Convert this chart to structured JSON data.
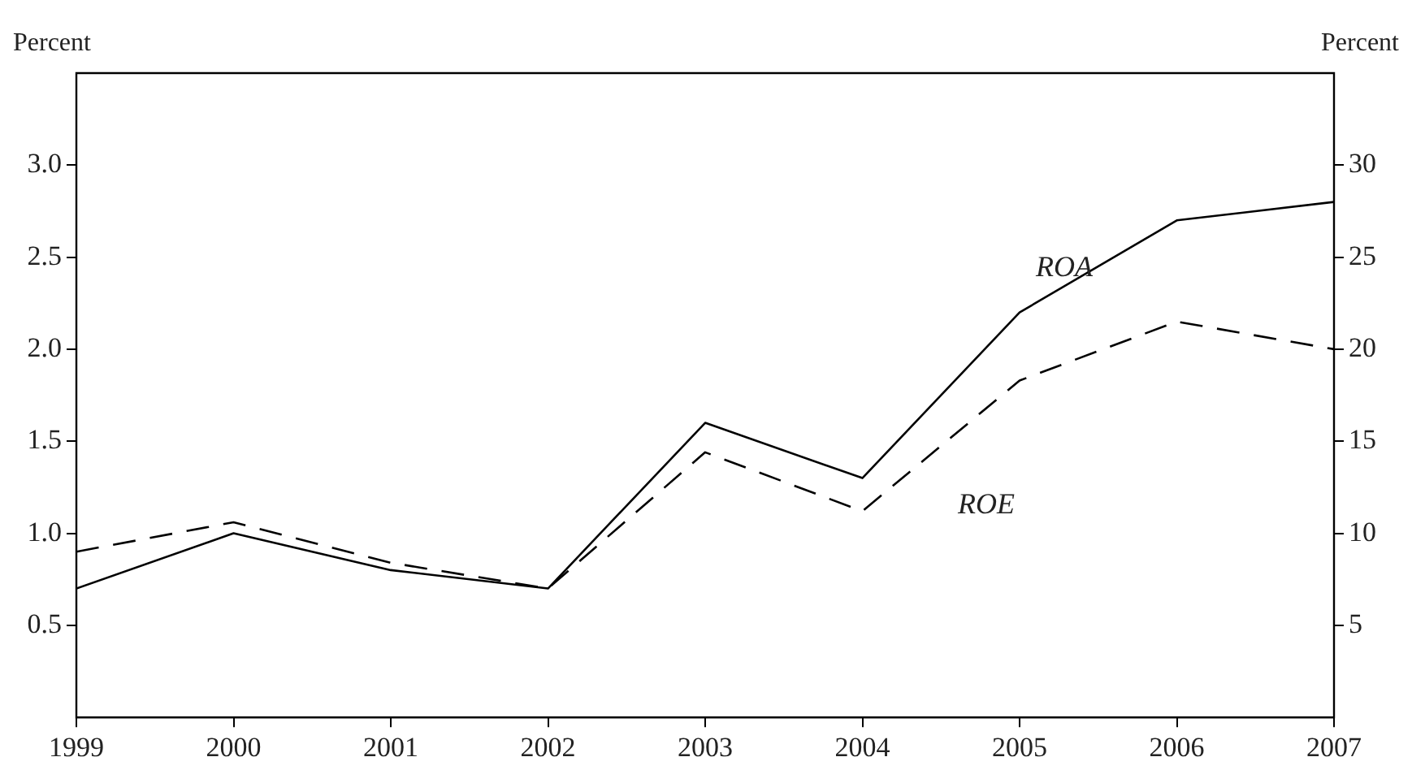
{
  "chart_data": {
    "type": "line",
    "ylabel": "Percent",
    "y2label": "Percent",
    "x": [
      1999,
      2000,
      2001,
      2002,
      2003,
      2004,
      2005,
      2006,
      2007
    ],
    "xlim": [
      1999,
      2007
    ],
    "xticks": [
      1999,
      2000,
      2001,
      2002,
      2003,
      2004,
      2005,
      2006,
      2007
    ],
    "ylim": [
      0,
      3.5
    ],
    "yticks": [
      0.5,
      {
        "value": 1,
        "label": "1.0"
      },
      1.5,
      {
        "value": 2,
        "label": "2.0"
      },
      2.5,
      {
        "value": 3,
        "label": "3.0"
      }
    ],
    "y2lim": [
      0,
      35
    ],
    "y2ticks": [
      5,
      10,
      15,
      20,
      25,
      30
    ],
    "series": [
      {
        "name": "ROA",
        "color": "#000000",
        "line_style": "solid",
        "values": [
          0.7,
          1.0,
          0.8,
          0.7,
          1.6,
          1.3,
          2.2,
          2.7,
          2.8
        ]
      },
      {
        "name": "ROE",
        "color": "#000000",
        "line_style": "dashed",
        "axis": "y2",
        "values": [
          9,
          10.6,
          8.4,
          7,
          14.4,
          11.2,
          18.3,
          21.5,
          20
        ]
      }
    ],
    "marker": "none",
    "grid": false,
    "legend": false
  }
}
